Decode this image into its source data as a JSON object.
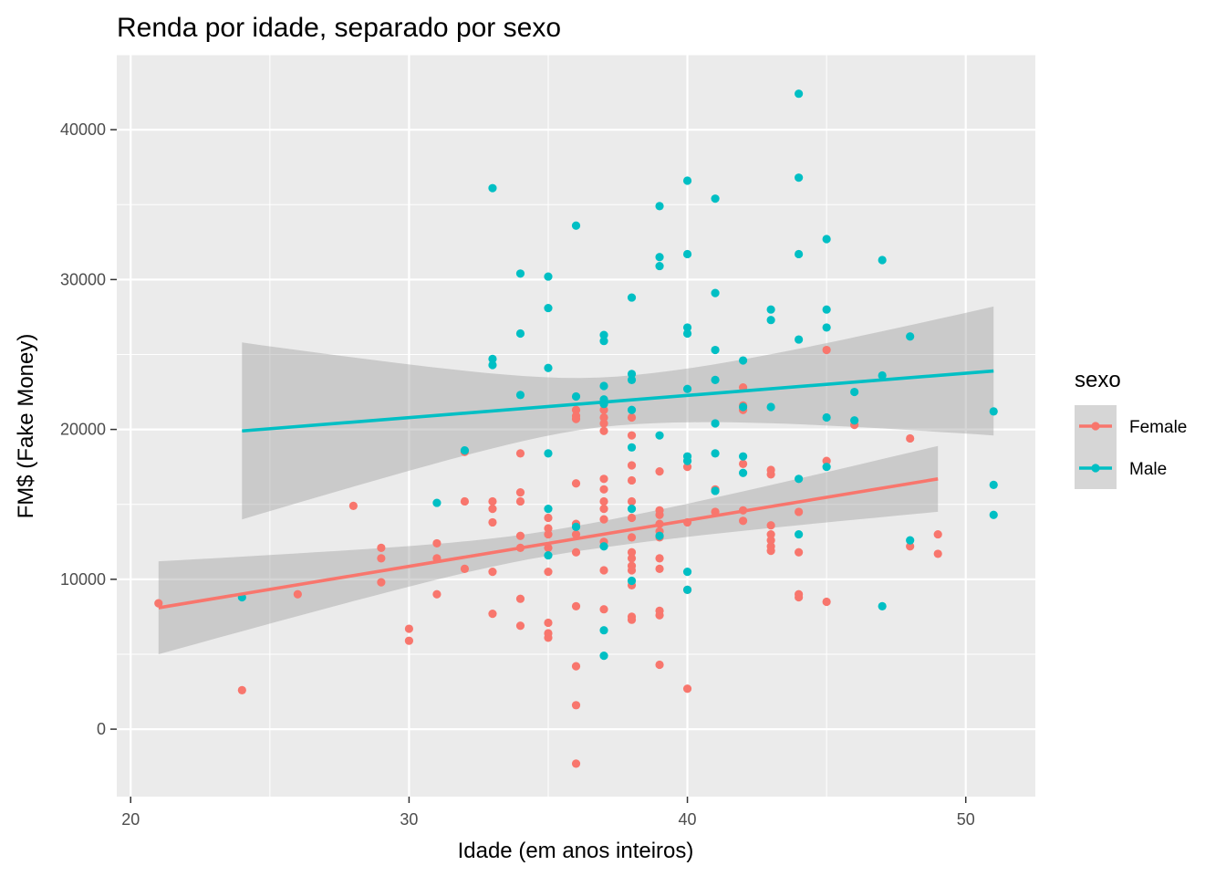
{
  "chart_data": {
    "type": "scatter",
    "title": "Renda por idade, separado por sexo",
    "xlabel": "Idade (em anos inteiros)",
    "ylabel": "FM$ (Fake Money)",
    "xlim": [
      19.5,
      52.5
    ],
    "ylim": [
      -4500,
      45000
    ],
    "x_ticks": [
      20,
      30,
      40,
      50
    ],
    "y_ticks": [
      0,
      10000,
      20000,
      30000,
      40000
    ],
    "x_tick_labels": [
      "20",
      "30",
      "40",
      "50"
    ],
    "y_tick_labels": [
      "0",
      "10000",
      "20000",
      "30000",
      "40000"
    ],
    "grid": true,
    "legend_title": "sexo",
    "legend_position": "right",
    "colors": {
      "panel": "#ebebeb",
      "grid": "#ffffff",
      "ribbon": "#999999",
      "Female": "#f8766d",
      "Male": "#00bfc4"
    },
    "series": [
      {
        "name": "Female",
        "points": [
          [
            21,
            8400
          ],
          [
            24,
            2600
          ],
          [
            26,
            9000
          ],
          [
            28,
            14900
          ],
          [
            29,
            12100
          ],
          [
            29,
            11400
          ],
          [
            29,
            9800
          ],
          [
            30,
            6700
          ],
          [
            30,
            5900
          ],
          [
            31,
            12400
          ],
          [
            31,
            11400
          ],
          [
            31,
            9000
          ],
          [
            32,
            15200
          ],
          [
            32,
            10700
          ],
          [
            32,
            18500
          ],
          [
            33,
            15200
          ],
          [
            33,
            14700
          ],
          [
            33,
            13800
          ],
          [
            33,
            10500
          ],
          [
            33,
            7700
          ],
          [
            34,
            18400
          ],
          [
            34,
            15800
          ],
          [
            34,
            15200
          ],
          [
            34,
            12900
          ],
          [
            34,
            12100
          ],
          [
            34,
            8700
          ],
          [
            34,
            6900
          ],
          [
            35,
            14100
          ],
          [
            35,
            13400
          ],
          [
            35,
            13000
          ],
          [
            35,
            12100
          ],
          [
            35,
            10500
          ],
          [
            35,
            7100
          ],
          [
            35,
            6400
          ],
          [
            35,
            6100
          ],
          [
            36,
            21300
          ],
          [
            36,
            20900
          ],
          [
            36,
            20700
          ],
          [
            36,
            16400
          ],
          [
            36,
            13700
          ],
          [
            36,
            13000
          ],
          [
            36,
            11800
          ],
          [
            36,
            8200
          ],
          [
            36,
            4200
          ],
          [
            36,
            1600
          ],
          [
            36,
            -2300
          ],
          [
            37,
            21300
          ],
          [
            37,
            20800
          ],
          [
            37,
            20400
          ],
          [
            37,
            19900
          ],
          [
            37,
            16700
          ],
          [
            37,
            16000
          ],
          [
            37,
            15200
          ],
          [
            37,
            14700
          ],
          [
            37,
            14000
          ],
          [
            37,
            12500
          ],
          [
            37,
            10600
          ],
          [
            37,
            8000
          ],
          [
            38,
            20800
          ],
          [
            38,
            19600
          ],
          [
            38,
            17600
          ],
          [
            38,
            16600
          ],
          [
            38,
            15200
          ],
          [
            38,
            14100
          ],
          [
            38,
            12800
          ],
          [
            38,
            11800
          ],
          [
            38,
            11400
          ],
          [
            38,
            10900
          ],
          [
            38,
            10600
          ],
          [
            38,
            9600
          ],
          [
            38,
            7500
          ],
          [
            38,
            7300
          ],
          [
            39,
            17200
          ],
          [
            39,
            14600
          ],
          [
            39,
            14300
          ],
          [
            39,
            13700
          ],
          [
            39,
            13200
          ],
          [
            39,
            12800
          ],
          [
            39,
            11400
          ],
          [
            39,
            10700
          ],
          [
            39,
            7900
          ],
          [
            39,
            7600
          ],
          [
            39,
            4300
          ],
          [
            40,
            17500
          ],
          [
            40,
            13800
          ],
          [
            40,
            9300
          ],
          [
            40,
            2700
          ],
          [
            41,
            16000
          ],
          [
            41,
            14500
          ],
          [
            42,
            22800
          ],
          [
            42,
            21600
          ],
          [
            42,
            21300
          ],
          [
            42,
            17700
          ],
          [
            42,
            14600
          ],
          [
            42,
            13900
          ],
          [
            43,
            17300
          ],
          [
            43,
            17000
          ],
          [
            43,
            13600
          ],
          [
            43,
            13000
          ],
          [
            43,
            12600
          ],
          [
            43,
            12200
          ],
          [
            43,
            11900
          ],
          [
            44,
            14500
          ],
          [
            44,
            11800
          ],
          [
            44,
            9000
          ],
          [
            44,
            8800
          ],
          [
            45,
            25300
          ],
          [
            45,
            17900
          ],
          [
            45,
            8500
          ],
          [
            46,
            20300
          ],
          [
            48,
            19400
          ],
          [
            48,
            12200
          ],
          [
            49,
            13000
          ],
          [
            49,
            11700
          ]
        ],
        "fit": {
          "x": [
            21,
            49
          ],
          "y": [
            8100,
            16700
          ],
          "ribbon_lower": [
            5000,
            14500
          ],
          "ribbon_upper": [
            11200,
            18900
          ]
        }
      },
      {
        "name": "Male",
        "points": [
          [
            24,
            8800
          ],
          [
            31,
            15100
          ],
          [
            32,
            18600
          ],
          [
            33,
            36100
          ],
          [
            33,
            24700
          ],
          [
            33,
            24300
          ],
          [
            34,
            30400
          ],
          [
            34,
            26400
          ],
          [
            34,
            22300
          ],
          [
            35,
            30200
          ],
          [
            35,
            28100
          ],
          [
            35,
            24100
          ],
          [
            35,
            18400
          ],
          [
            35,
            14700
          ],
          [
            35,
            11600
          ],
          [
            36,
            33600
          ],
          [
            36,
            22200
          ],
          [
            36,
            13500
          ],
          [
            37,
            26300
          ],
          [
            37,
            25900
          ],
          [
            37,
            22900
          ],
          [
            37,
            22000
          ],
          [
            37,
            21700
          ],
          [
            37,
            12200
          ],
          [
            37,
            6600
          ],
          [
            37,
            4900
          ],
          [
            38,
            28800
          ],
          [
            38,
            23700
          ],
          [
            38,
            23300
          ],
          [
            38,
            21300
          ],
          [
            38,
            18800
          ],
          [
            38,
            14700
          ],
          [
            38,
            9900
          ],
          [
            39,
            34900
          ],
          [
            39,
            31500
          ],
          [
            39,
            30900
          ],
          [
            39,
            19600
          ],
          [
            39,
            12900
          ],
          [
            40,
            36600
          ],
          [
            40,
            31700
          ],
          [
            40,
            26800
          ],
          [
            40,
            26400
          ],
          [
            40,
            22700
          ],
          [
            40,
            18200
          ],
          [
            40,
            17900
          ],
          [
            40,
            10500
          ],
          [
            40,
            9300
          ],
          [
            41,
            35400
          ],
          [
            41,
            29100
          ],
          [
            41,
            25300
          ],
          [
            41,
            23300
          ],
          [
            41,
            20400
          ],
          [
            41,
            18400
          ],
          [
            41,
            15900
          ],
          [
            42,
            24600
          ],
          [
            42,
            21500
          ],
          [
            42,
            18200
          ],
          [
            42,
            17100
          ],
          [
            43,
            28000
          ],
          [
            43,
            27300
          ],
          [
            43,
            21500
          ],
          [
            44,
            42400
          ],
          [
            44,
            36800
          ],
          [
            44,
            31700
          ],
          [
            44,
            26000
          ],
          [
            44,
            16700
          ],
          [
            44,
            13000
          ],
          [
            45,
            32700
          ],
          [
            45,
            28000
          ],
          [
            45,
            26800
          ],
          [
            45,
            20800
          ],
          [
            45,
            17500
          ],
          [
            46,
            22500
          ],
          [
            46,
            20600
          ],
          [
            47,
            31300
          ],
          [
            47,
            23600
          ],
          [
            47,
            8200
          ],
          [
            48,
            26200
          ],
          [
            48,
            12600
          ],
          [
            51,
            21200
          ],
          [
            51,
            16300
          ],
          [
            51,
            14300
          ]
        ],
        "fit": {
          "x": [
            24,
            51
          ],
          "y": [
            19900,
            23900
          ],
          "ribbon_lower": [
            14000,
            19600
          ],
          "ribbon_upper": [
            25900,
            28200
          ]
        }
      }
    ]
  }
}
